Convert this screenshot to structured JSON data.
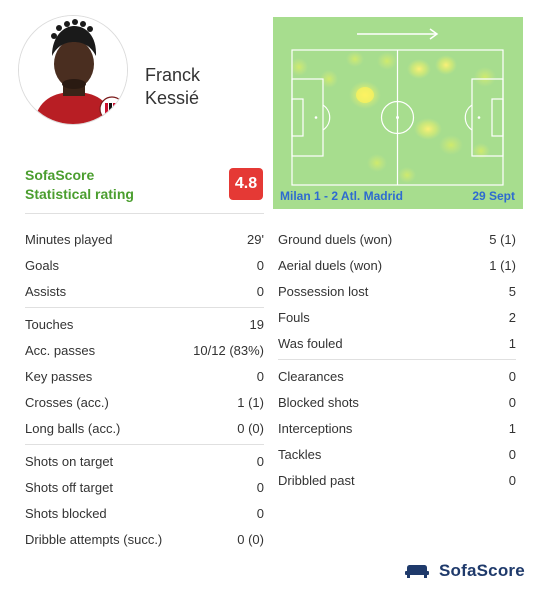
{
  "player": {
    "first_name": "Franck",
    "last_name": "Kessié",
    "avatar_icon": "player-photo-icon",
    "club_badge_icon": "club-crest-icon"
  },
  "rating": {
    "line1": "SofaScore",
    "line2": "Statistical rating",
    "value": "4.8",
    "badge_color": "#e53935"
  },
  "match": {
    "label": "Milan 1 - 2 Atl. Madrid",
    "date": "29 Sept",
    "heatmap_colors": {
      "pitch": "#a7dd8e",
      "hot": "#fff176",
      "warm": "#d6ea80"
    }
  },
  "stats_left": [
    [
      {
        "label": "Minutes played",
        "value": "29'"
      },
      {
        "label": "Goals",
        "value": "0"
      },
      {
        "label": "Assists",
        "value": "0"
      }
    ],
    [
      {
        "label": "Touches",
        "value": "19"
      },
      {
        "label": "Acc. passes",
        "value": "10/12 (83%)"
      },
      {
        "label": "Key passes",
        "value": "0"
      },
      {
        "label": "Crosses (acc.)",
        "value": "1 (1)"
      },
      {
        "label": "Long balls (acc.)",
        "value": "0 (0)"
      }
    ],
    [
      {
        "label": "Shots on target",
        "value": "0"
      },
      {
        "label": "Shots off target",
        "value": "0"
      },
      {
        "label": "Shots blocked",
        "value": "0"
      },
      {
        "label": "Dribble attempts (succ.)",
        "value": "0 (0)"
      }
    ]
  ],
  "stats_right": [
    [
      {
        "label": "Ground duels (won)",
        "value": "5 (1)"
      },
      {
        "label": "Aerial duels (won)",
        "value": "1 (1)"
      },
      {
        "label": "Possession lost",
        "value": "5"
      },
      {
        "label": "Fouls",
        "value": "2"
      },
      {
        "label": "Was fouled",
        "value": "1"
      }
    ],
    [
      {
        "label": "Clearances",
        "value": "0"
      },
      {
        "label": "Blocked shots",
        "value": "0"
      },
      {
        "label": "Interceptions",
        "value": "1"
      },
      {
        "label": "Tackles",
        "value": "0"
      },
      {
        "label": "Dribbled past",
        "value": "0"
      }
    ]
  ],
  "brand": {
    "name": "SofaScore",
    "logo_icon": "sofascore-logo-icon",
    "color": "#1f3a6b"
  }
}
